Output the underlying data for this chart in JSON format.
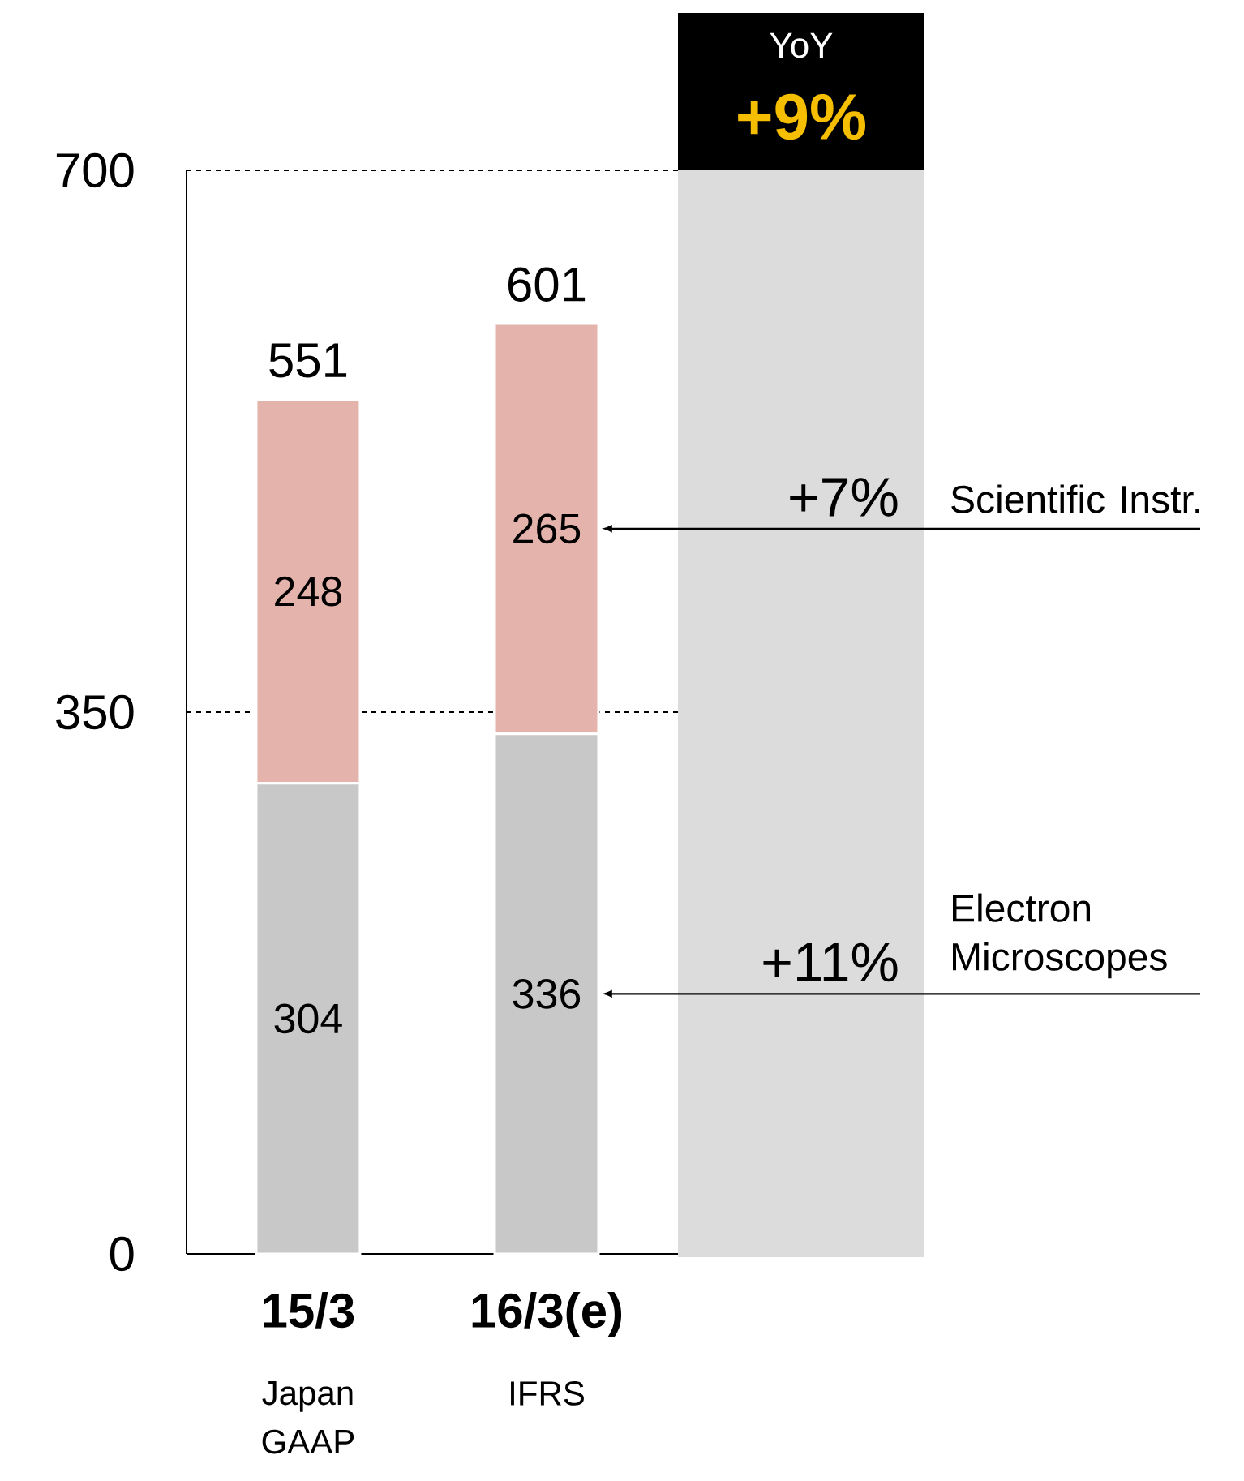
{
  "chart_data": {
    "type": "bar",
    "stacked": true,
    "categories": [
      "15/3",
      "16/3(e)"
    ],
    "series": [
      {
        "name": "Electron Microscopes",
        "color": "#c8c8c8",
        "values": [
          304,
          336
        ]
      },
      {
        "name": "Scientific Instr.",
        "color": "#e4b4ac",
        "values": [
          248,
          265
        ]
      }
    ],
    "totals": [
      "551",
      "601"
    ],
    "data_labels": true,
    "ylim": [
      0,
      700
    ],
    "yticks": [
      0,
      350,
      700
    ],
    "grid": "y",
    "annotations": [
      "YoY",
      "+9%",
      "+7%",
      "+11%",
      "Japan GAAP",
      "IFRS"
    ]
  }
}
